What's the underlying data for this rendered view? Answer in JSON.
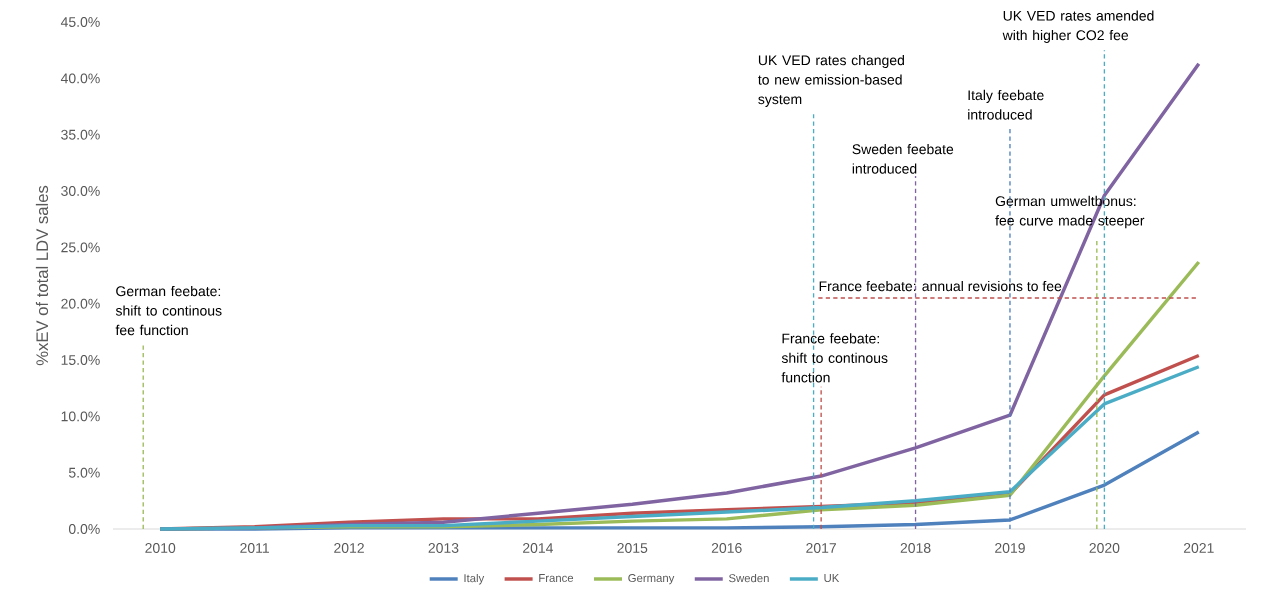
{
  "chart_data": {
    "type": "line",
    "ylabel": "%xEV of total LDV sales",
    "x": [
      2010,
      2011,
      2012,
      2013,
      2014,
      2015,
      2016,
      2017,
      2018,
      2019,
      2020,
      2021
    ],
    "xlim": [
      2009.5,
      2021.5
    ],
    "xticks": [
      2010,
      2011,
      2012,
      2013,
      2014,
      2015,
      2016,
      2017,
      2018,
      2019,
      2020,
      2021
    ],
    "ylim": [
      0,
      45
    ],
    "yticks": [
      {
        "value": 0,
        "label": "0.0%"
      },
      {
        "value": 5,
        "label": "5.0%"
      },
      {
        "value": 10,
        "label": "10.0%"
      },
      {
        "value": 15,
        "label": "15.0%"
      },
      {
        "value": 20,
        "label": "20.0%"
      },
      {
        "value": 25,
        "label": "25.0%"
      },
      {
        "value": 30,
        "label": "30.0%"
      },
      {
        "value": 35,
        "label": "35.0%"
      },
      {
        "value": 40,
        "label": "40.0%"
      },
      {
        "value": 45,
        "label": "45.0%"
      }
    ],
    "series": [
      {
        "name": "Italy",
        "color": "#4f81bd",
        "values": [
          0,
          0,
          0.1,
          0.1,
          0.1,
          0.1,
          0.1,
          0.2,
          0.4,
          0.8,
          3.9,
          8.6
        ]
      },
      {
        "name": "France",
        "color": "#c0504d",
        "values": [
          0,
          0.2,
          0.6,
          0.9,
          0.9,
          1.4,
          1.7,
          2.0,
          2.3,
          3.1,
          11.9,
          15.4
        ]
      },
      {
        "name": "Germany",
        "color": "#9bbb59",
        "values": [
          0,
          0.1,
          0.2,
          0.2,
          0.4,
          0.7,
          0.9,
          1.7,
          2.1,
          3.0,
          13.6,
          23.7
        ]
      },
      {
        "name": "Sweden",
        "color": "#8064a2",
        "values": [
          0,
          0.1,
          0.4,
          0.6,
          1.4,
          2.2,
          3.2,
          4.7,
          7.2,
          10.1,
          29.6,
          41.3
        ]
      },
      {
        "name": "UK",
        "color": "#4bacc6",
        "values": [
          0,
          0.1,
          0.3,
          0.3,
          0.7,
          1.1,
          1.5,
          1.9,
          2.5,
          3.3,
          11.1,
          14.4
        ]
      }
    ],
    "ref_lines": [
      {
        "axis": "x",
        "value": 2009.82,
        "label": "German feebate: shift to continous fee function",
        "color": "#9bbb59",
        "line_style": "dashed"
      },
      {
        "axis": "x",
        "value": 2016.92,
        "label": "UK VED rates changed to new emission-based system",
        "color": "#4bacc6",
        "line_style": "dashed"
      },
      {
        "axis": "x",
        "value": 2017.0,
        "label": "France feebate: shift to continous function",
        "color": "#c0504d",
        "line_style": "dashed"
      },
      {
        "axis": "x",
        "value": 2018.0,
        "label": "Sweden feebate introduced",
        "color": "#8064a2",
        "line_style": "dashed"
      },
      {
        "axis": "x",
        "value": 2019.0,
        "label": "Italy feebate introduced",
        "color": "#4f81bd",
        "line_style": "dashed"
      },
      {
        "axis": "x",
        "value": 2019.92,
        "label": "German umweltbonus: fee curve made steeper",
        "color": "#9bbb59",
        "line_style": "dashed"
      },
      {
        "axis": "x",
        "value": 2020.0,
        "label": "UK VED rates amended with higher CO2 fee",
        "color": "#4bacc6",
        "line_style": "dashed"
      },
      {
        "axis": "y",
        "value": 20.5,
        "label": "France feebate: annual revisions to fee",
        "color": "#c0504d",
        "line_style": "dashed"
      }
    ],
    "legend": "bottom",
    "marker": "none",
    "line_style": "solid"
  }
}
